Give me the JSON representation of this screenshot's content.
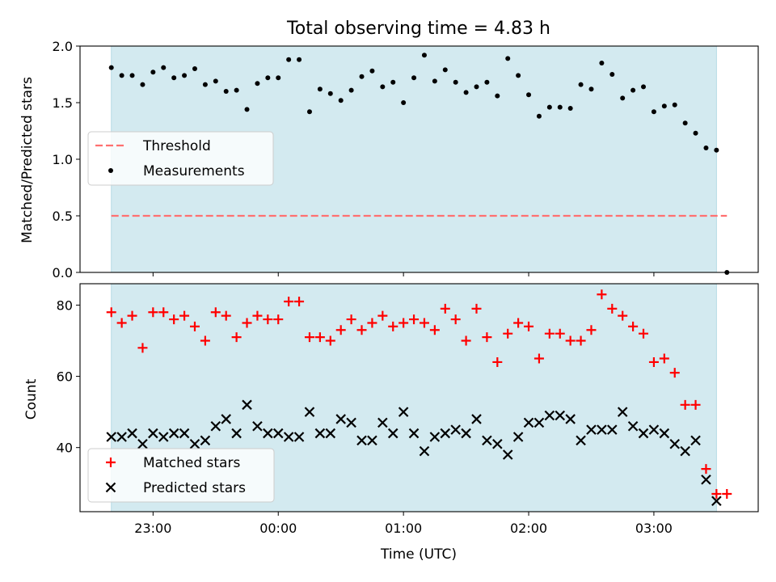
{
  "chart_data": [
    {
      "type": "scatter",
      "title": "Total observing time = 4.83 h",
      "xlabel": "",
      "ylabel": "Matched/Predicted stars",
      "x_unit": "time (UTC)",
      "xlim": [
        "22:25",
        "03:50"
      ],
      "ylim": [
        0,
        2.0
      ],
      "yticks": [
        "0.0",
        "0.5",
        "1.0",
        "1.5",
        "2.0"
      ],
      "shaded_region": {
        "start": "22:40",
        "end": "03:30",
        "color": "#d3eaf0"
      },
      "threshold": {
        "name": "Threshold",
        "y": 0.5,
        "x_start": "22:40",
        "x_end": "03:35",
        "color": "#ff7070",
        "style": "dashed"
      },
      "legend": {
        "placement": "center-left",
        "entries": [
          "Threshold",
          "Measurements"
        ]
      },
      "series": [
        {
          "name": "Measurements",
          "color": "#000000",
          "marker": "dot",
          "points": [
            [
              "22:40",
              1.81
            ],
            [
              "22:45",
              1.74
            ],
            [
              "22:50",
              1.74
            ],
            [
              "22:55",
              1.66
            ],
            [
              "23:00",
              1.77
            ],
            [
              "23:05",
              1.81
            ],
            [
              "23:10",
              1.72
            ],
            [
              "23:15",
              1.74
            ],
            [
              "23:20",
              1.8
            ],
            [
              "23:25",
              1.66
            ],
            [
              "23:30",
              1.69
            ],
            [
              "23:35",
              1.6
            ],
            [
              "23:40",
              1.61
            ],
            [
              "23:45",
              1.44
            ],
            [
              "23:50",
              1.67
            ],
            [
              "23:55",
              1.72
            ],
            [
              "00:00",
              1.72
            ],
            [
              "00:05",
              1.88
            ],
            [
              "00:10",
              1.88
            ],
            [
              "00:15",
              1.42
            ],
            [
              "00:20",
              1.62
            ],
            [
              "00:25",
              1.58
            ],
            [
              "00:30",
              1.52
            ],
            [
              "00:35",
              1.61
            ],
            [
              "00:40",
              1.73
            ],
            [
              "00:45",
              1.78
            ],
            [
              "00:50",
              1.64
            ],
            [
              "00:55",
              1.68
            ],
            [
              "01:00",
              1.5
            ],
            [
              "01:05",
              1.72
            ],
            [
              "01:10",
              1.92
            ],
            [
              "01:15",
              1.69
            ],
            [
              "01:20",
              1.79
            ],
            [
              "01:25",
              1.68
            ],
            [
              "01:30",
              1.59
            ],
            [
              "01:35",
              1.64
            ],
            [
              "01:40",
              1.68
            ],
            [
              "01:45",
              1.56
            ],
            [
              "01:50",
              1.89
            ],
            [
              "01:55",
              1.74
            ],
            [
              "02:00",
              1.57
            ],
            [
              "02:05",
              1.38
            ],
            [
              "02:10",
              1.46
            ],
            [
              "02:15",
              1.46
            ],
            [
              "02:20",
              1.45
            ],
            [
              "02:25",
              1.66
            ],
            [
              "02:30",
              1.62
            ],
            [
              "02:35",
              1.85
            ],
            [
              "02:40",
              1.75
            ],
            [
              "02:45",
              1.54
            ],
            [
              "02:50",
              1.61
            ],
            [
              "02:55",
              1.64
            ],
            [
              "03:00",
              1.42
            ],
            [
              "03:05",
              1.47
            ],
            [
              "03:10",
              1.48
            ],
            [
              "03:15",
              1.32
            ],
            [
              "03:20",
              1.23
            ],
            [
              "03:25",
              1.1
            ],
            [
              "03:30",
              1.08
            ],
            [
              "03:35",
              0.0
            ]
          ]
        }
      ]
    },
    {
      "type": "scatter",
      "title": "",
      "xlabel": "Time (UTC)",
      "ylabel": "Count",
      "xlim": [
        "22:25",
        "03:50"
      ],
      "ylim": [
        22,
        86
      ],
      "xticks": [
        "23:00",
        "00:00",
        "01:00",
        "02:00",
        "03:00"
      ],
      "yticks": [
        "40",
        "60",
        "80"
      ],
      "shaded_region": {
        "start": "22:40",
        "end": "03:30",
        "color": "#d3eaf0"
      },
      "legend": {
        "placement": "bottom-left",
        "entries": [
          "Matched stars",
          "Predicted stars"
        ]
      },
      "series": [
        {
          "name": "Matched stars",
          "color": "#ff0000",
          "marker": "plus",
          "points": [
            [
              "22:40",
              78
            ],
            [
              "22:45",
              75
            ],
            [
              "22:50",
              77
            ],
            [
              "22:55",
              68
            ],
            [
              "23:00",
              78
            ],
            [
              "23:05",
              78
            ],
            [
              "23:10",
              76
            ],
            [
              "23:15",
              77
            ],
            [
              "23:20",
              74
            ],
            [
              "23:25",
              70
            ],
            [
              "23:30",
              78
            ],
            [
              "23:35",
              77
            ],
            [
              "23:40",
              71
            ],
            [
              "23:45",
              75
            ],
            [
              "23:50",
              77
            ],
            [
              "23:55",
              76
            ],
            [
              "00:00",
              76
            ],
            [
              "00:05",
              81
            ],
            [
              "00:10",
              81
            ],
            [
              "00:15",
              71
            ],
            [
              "00:20",
              71
            ],
            [
              "00:25",
              70
            ],
            [
              "00:30",
              73
            ],
            [
              "00:35",
              76
            ],
            [
              "00:40",
              73
            ],
            [
              "00:45",
              75
            ],
            [
              "00:50",
              77
            ],
            [
              "00:55",
              74
            ],
            [
              "01:00",
              75
            ],
            [
              "01:05",
              76
            ],
            [
              "01:10",
              75
            ],
            [
              "01:15",
              73
            ],
            [
              "01:20",
              79
            ],
            [
              "01:25",
              76
            ],
            [
              "01:30",
              70
            ],
            [
              "01:35",
              79
            ],
            [
              "01:40",
              71
            ],
            [
              "01:45",
              64
            ],
            [
              "01:50",
              72
            ],
            [
              "01:55",
              75
            ],
            [
              "02:00",
              74
            ],
            [
              "02:05",
              65
            ],
            [
              "02:10",
              72
            ],
            [
              "02:15",
              72
            ],
            [
              "02:20",
              70
            ],
            [
              "02:25",
              70
            ],
            [
              "02:30",
              73
            ],
            [
              "02:35",
              83
            ],
            [
              "02:40",
              79
            ],
            [
              "02:45",
              77
            ],
            [
              "02:50",
              74
            ],
            [
              "02:55",
              72
            ],
            [
              "03:00",
              64
            ],
            [
              "03:05",
              65
            ],
            [
              "03:10",
              61
            ],
            [
              "03:15",
              52
            ],
            [
              "03:20",
              52
            ],
            [
              "03:25",
              34
            ],
            [
              "03:30",
              27
            ],
            [
              "03:35",
              27
            ]
          ]
        },
        {
          "name": "Predicted stars",
          "color": "#000000",
          "marker": "x",
          "points": [
            [
              "22:40",
              43
            ],
            [
              "22:45",
              43
            ],
            [
              "22:50",
              44
            ],
            [
              "22:55",
              41
            ],
            [
              "23:00",
              44
            ],
            [
              "23:05",
              43
            ],
            [
              "23:10",
              44
            ],
            [
              "23:15",
              44
            ],
            [
              "23:20",
              41
            ],
            [
              "23:25",
              42
            ],
            [
              "23:30",
              46
            ],
            [
              "23:35",
              48
            ],
            [
              "23:40",
              44
            ],
            [
              "23:45",
              52
            ],
            [
              "23:50",
              46
            ],
            [
              "23:55",
              44
            ],
            [
              "00:00",
              44
            ],
            [
              "00:05",
              43
            ],
            [
              "00:10",
              43
            ],
            [
              "00:15",
              50
            ],
            [
              "00:20",
              44
            ],
            [
              "00:25",
              44
            ],
            [
              "00:30",
              48
            ],
            [
              "00:35",
              47
            ],
            [
              "00:40",
              42
            ],
            [
              "00:45",
              42
            ],
            [
              "00:50",
              47
            ],
            [
              "00:55",
              44
            ],
            [
              "01:00",
              50
            ],
            [
              "01:05",
              44
            ],
            [
              "01:10",
              39
            ],
            [
              "01:15",
              43
            ],
            [
              "01:20",
              44
            ],
            [
              "01:25",
              45
            ],
            [
              "01:30",
              44
            ],
            [
              "01:35",
              48
            ],
            [
              "01:40",
              42
            ],
            [
              "01:45",
              41
            ],
            [
              "01:50",
              38
            ],
            [
              "01:55",
              43
            ],
            [
              "02:00",
              47
            ],
            [
              "02:05",
              47
            ],
            [
              "02:10",
              49
            ],
            [
              "02:15",
              49
            ],
            [
              "02:20",
              48
            ],
            [
              "02:25",
              42
            ],
            [
              "02:30",
              45
            ],
            [
              "02:35",
              45
            ],
            [
              "02:40",
              45
            ],
            [
              "02:45",
              50
            ],
            [
              "02:50",
              46
            ],
            [
              "02:55",
              44
            ],
            [
              "03:00",
              45
            ],
            [
              "03:05",
              44
            ],
            [
              "03:10",
              41
            ],
            [
              "03:15",
              39
            ],
            [
              "03:20",
              42
            ],
            [
              "03:25",
              31
            ],
            [
              "03:30",
              25
            ]
          ]
        }
      ]
    }
  ]
}
